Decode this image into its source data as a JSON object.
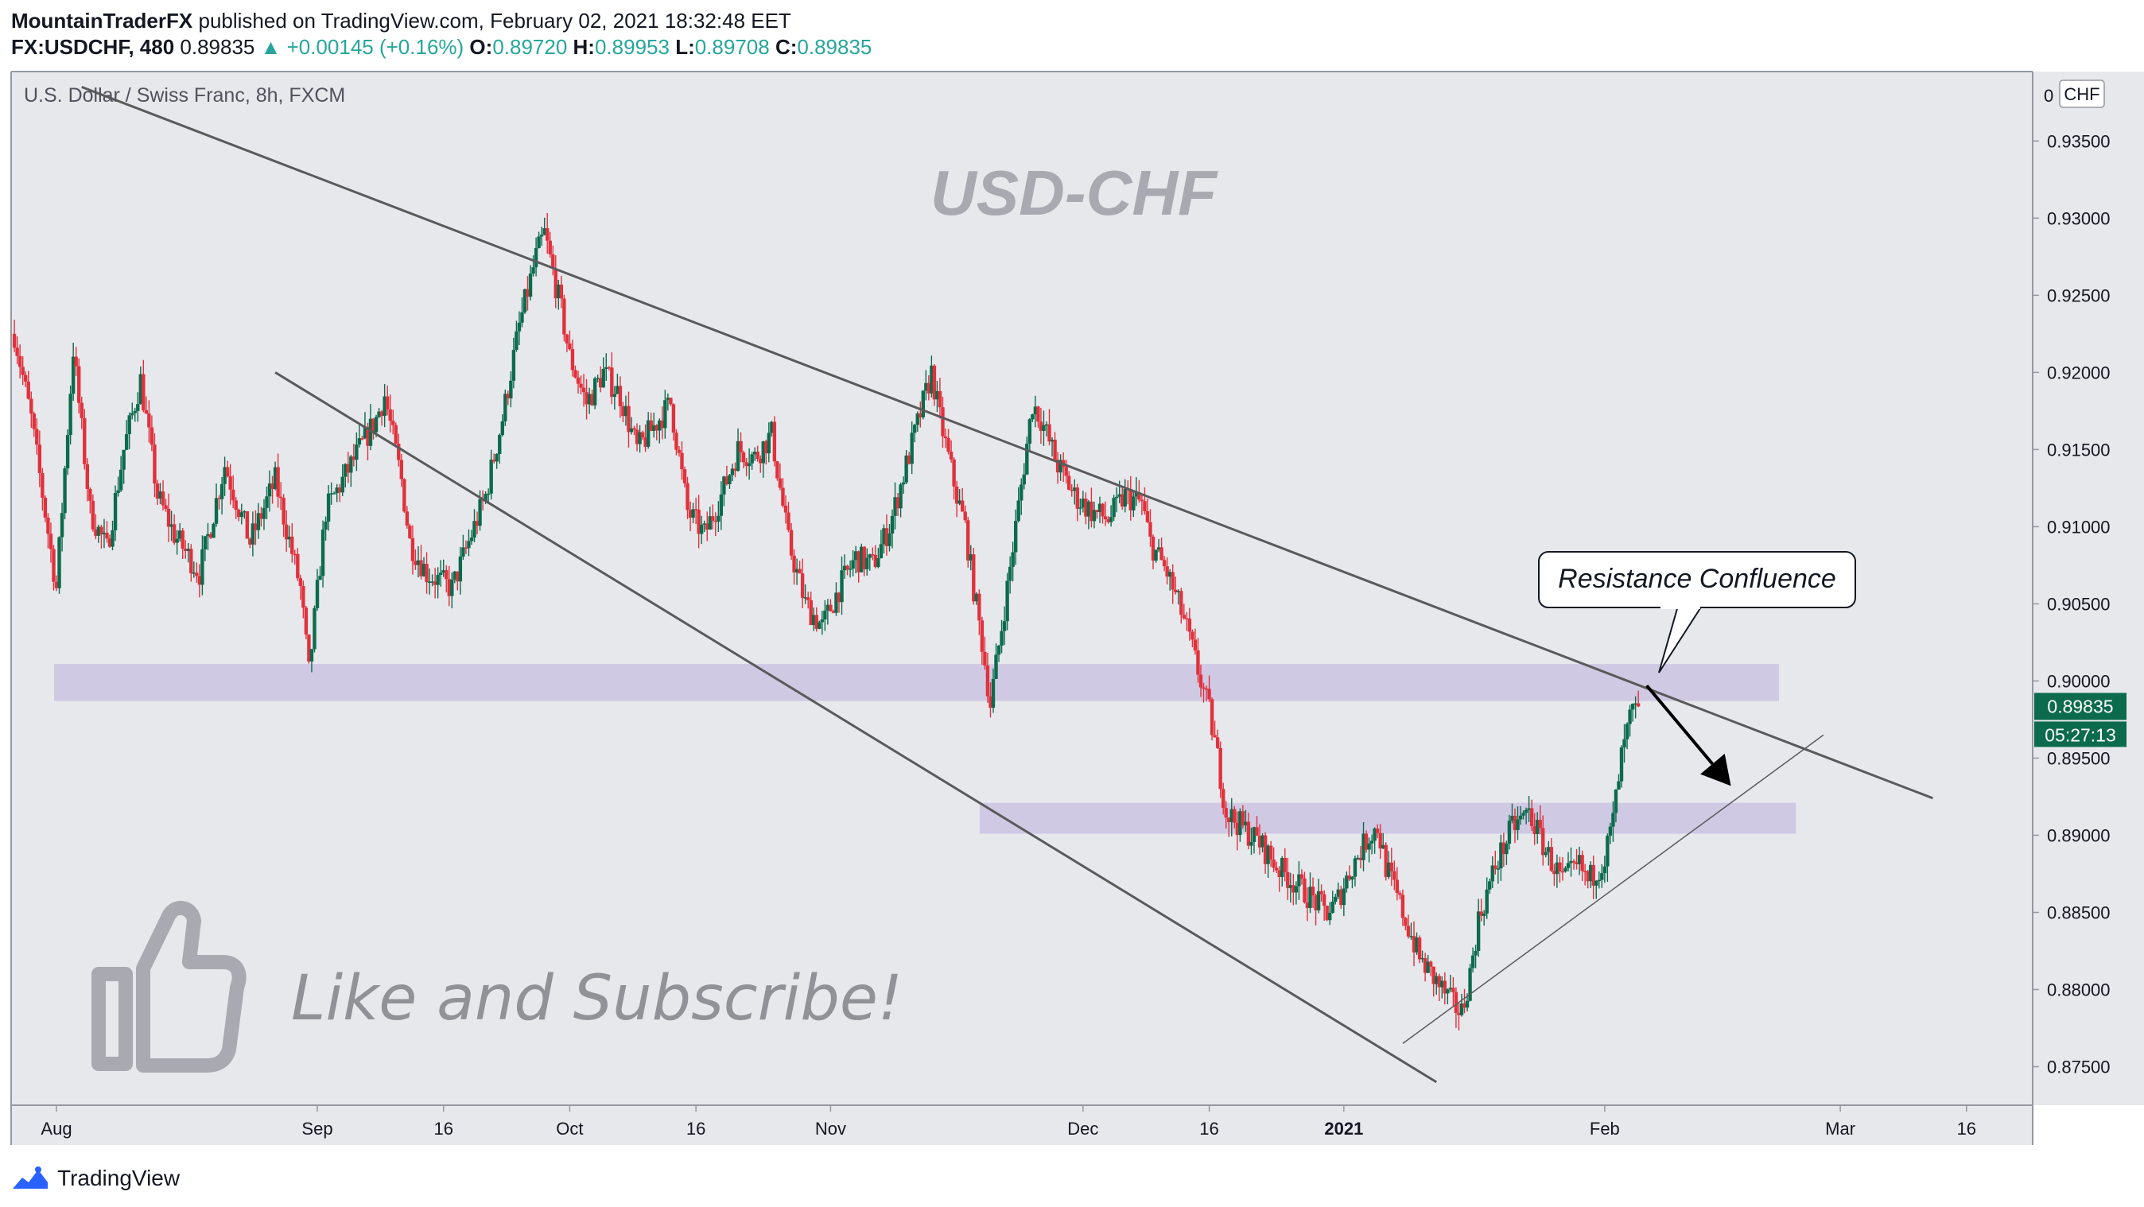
{
  "header": {
    "author": "MountainTraderFX",
    "published_text": "published on TradingView.com, February 02, 2021 18:32:48 EET"
  },
  "quote": {
    "symbol": "FX:USDCHF, 480",
    "price": "0.89835",
    "change": "▲ +0.00145 (+0.16%)",
    "o_label": "O:",
    "o": "0.89720",
    "h_label": "H:",
    "h": "0.89953",
    "l_label": "L:",
    "l": "0.89708",
    "c_label": "C:",
    "c": "0.89835"
  },
  "footer": {
    "brand": "TradingView"
  },
  "colors": {
    "bg": "#e7e8ec",
    "up": "#0c6b4c",
    "down": "#e0313c",
    "zone": "#cbc3e3",
    "line": "#5a5a5a",
    "price_badge": "#0c6b4c"
  },
  "chart_data": {
    "type": "candlestick",
    "title": "U.S. Dollar / Swiss Franc, 8h, FXCM",
    "watermark": "USD-CHF",
    "promo_text": "Like and Subscribe!",
    "currency_label": "CHF",
    "top_tick_partial": "0",
    "ylim": [
      0.8725,
      0.9395
    ],
    "y_ticks": [
      "0.93500",
      "0.93000",
      "0.92500",
      "0.92000",
      "0.91500",
      "0.91000",
      "0.90500",
      "0.90000",
      "0.89500",
      "0.89000",
      "0.88500",
      "0.88000",
      "0.87500"
    ],
    "x_ticks": [
      {
        "label": "Aug",
        "day": 0,
        "bold": false
      },
      {
        "label": "Sep",
        "day": 31,
        "bold": false
      },
      {
        "label": "16",
        "day": 46,
        "bold": false
      },
      {
        "label": "Oct",
        "day": 61,
        "bold": false
      },
      {
        "label": "16",
        "day": 76,
        "bold": false
      },
      {
        "label": "Nov",
        "day": 92,
        "bold": false
      },
      {
        "label": "Dec",
        "day": 122,
        "bold": false
      },
      {
        "label": "16",
        "day": 137,
        "bold": false
      },
      {
        "label": "2021",
        "day": 153,
        "bold": true
      },
      {
        "label": "Feb",
        "day": 184,
        "bold": false
      },
      {
        "label": "Mar",
        "day": 212,
        "bold": false
      },
      {
        "label": "16",
        "day": 227,
        "bold": false
      }
    ],
    "last_price": "0.89835",
    "last_price_value": 0.89835,
    "countdown": "05:27:13",
    "close_path": [
      {
        "day": -5,
        "v": 0.9225
      },
      {
        "day": -3,
        "v": 0.917
      },
      {
        "day": 0,
        "v": 0.906
      },
      {
        "day": 2,
        "v": 0.9215
      },
      {
        "day": 4,
        "v": 0.911
      },
      {
        "day": 6,
        "v": 0.9085
      },
      {
        "day": 8,
        "v": 0.915
      },
      {
        "day": 10,
        "v": 0.9195
      },
      {
        "day": 12,
        "v": 0.912
      },
      {
        "day": 14,
        "v": 0.9095
      },
      {
        "day": 17,
        "v": 0.907
      },
      {
        "day": 20,
        "v": 0.914
      },
      {
        "day": 23,
        "v": 0.909
      },
      {
        "day": 26,
        "v": 0.913
      },
      {
        "day": 29,
        "v": 0.906
      },
      {
        "day": 30,
        "v": 0.9005
      },
      {
        "day": 32,
        "v": 0.911
      },
      {
        "day": 35,
        "v": 0.914
      },
      {
        "day": 38,
        "v": 0.917
      },
      {
        "day": 39,
        "v": 0.9185
      },
      {
        "day": 41,
        "v": 0.913
      },
      {
        "day": 42,
        "v": 0.909
      },
      {
        "day": 44,
        "v": 0.907
      },
      {
        "day": 47,
        "v": 0.906
      },
      {
        "day": 49,
        "v": 0.909
      },
      {
        "day": 51,
        "v": 0.912
      },
      {
        "day": 53,
        "v": 0.917
      },
      {
        "day": 55,
        "v": 0.923
      },
      {
        "day": 57,
        "v": 0.9275
      },
      {
        "day": 58,
        "v": 0.929
      },
      {
        "day": 60,
        "v": 0.924
      },
      {
        "day": 61,
        "v": 0.921
      },
      {
        "day": 63,
        "v": 0.918
      },
      {
        "day": 65,
        "v": 0.92
      },
      {
        "day": 67,
        "v": 0.9185
      },
      {
        "day": 69,
        "v": 0.915
      },
      {
        "day": 71,
        "v": 0.9165
      },
      {
        "day": 73,
        "v": 0.918
      },
      {
        "day": 75,
        "v": 0.911
      },
      {
        "day": 77,
        "v": 0.9095
      },
      {
        "day": 79,
        "v": 0.912
      },
      {
        "day": 81,
        "v": 0.915
      },
      {
        "day": 83,
        "v": 0.9145
      },
      {
        "day": 85,
        "v": 0.916
      },
      {
        "day": 87,
        "v": 0.909
      },
      {
        "day": 89,
        "v": 0.905
      },
      {
        "day": 91,
        "v": 0.9035
      },
      {
        "day": 93,
        "v": 0.906
      },
      {
        "day": 95,
        "v": 0.908
      },
      {
        "day": 97,
        "v": 0.9075
      },
      {
        "day": 99,
        "v": 0.91
      },
      {
        "day": 101,
        "v": 0.914
      },
      {
        "day": 103,
        "v": 0.918
      },
      {
        "day": 104,
        "v": 0.92
      },
      {
        "day": 105,
        "v": 0.917
      },
      {
        "day": 107,
        "v": 0.912
      },
      {
        "day": 108,
        "v": 0.91
      },
      {
        "day": 109,
        "v": 0.906
      },
      {
        "day": 110,
        "v": 0.9025
      },
      {
        "day": 111,
        "v": 0.8985
      },
      {
        "day": 113,
        "v": 0.906
      },
      {
        "day": 115,
        "v": 0.914
      },
      {
        "day": 116,
        "v": 0.918
      },
      {
        "day": 117,
        "v": 0.917
      },
      {
        "day": 119,
        "v": 0.914
      },
      {
        "day": 121,
        "v": 0.912
      },
      {
        "day": 123,
        "v": 0.911
      },
      {
        "day": 125,
        "v": 0.9105
      },
      {
        "day": 127,
        "v": 0.912
      },
      {
        "day": 129,
        "v": 0.9115
      },
      {
        "day": 130,
        "v": 0.909
      },
      {
        "day": 132,
        "v": 0.907
      },
      {
        "day": 134,
        "v": 0.904
      },
      {
        "day": 135,
        "v": 0.902
      },
      {
        "day": 136,
        "v": 0.9
      },
      {
        "day": 137,
        "v": 0.898
      },
      {
        "day": 138,
        "v": 0.895
      },
      {
        "day": 139,
        "v": 0.8915
      },
      {
        "day": 141,
        "v": 0.8905
      },
      {
        "day": 143,
        "v": 0.8895
      },
      {
        "day": 145,
        "v": 0.888
      },
      {
        "day": 147,
        "v": 0.887
      },
      {
        "day": 149,
        "v": 0.886
      },
      {
        "day": 151,
        "v": 0.885
      },
      {
        "day": 152,
        "v": 0.8855
      },
      {
        "day": 154,
        "v": 0.888
      },
      {
        "day": 156,
        "v": 0.89
      },
      {
        "day": 157,
        "v": 0.8905
      },
      {
        "day": 158,
        "v": 0.888
      },
      {
        "day": 160,
        "v": 0.885
      },
      {
        "day": 162,
        "v": 0.882
      },
      {
        "day": 164,
        "v": 0.8805
      },
      {
        "day": 166,
        "v": 0.879
      },
      {
        "day": 167,
        "v": 0.8785
      },
      {
        "day": 168,
        "v": 0.881
      },
      {
        "day": 169,
        "v": 0.8845
      },
      {
        "day": 171,
        "v": 0.888
      },
      {
        "day": 173,
        "v": 0.8905
      },
      {
        "day": 175,
        "v": 0.8915
      },
      {
        "day": 177,
        "v": 0.889
      },
      {
        "day": 179,
        "v": 0.887
      },
      {
        "day": 181,
        "v": 0.888
      },
      {
        "day": 182,
        "v": 0.887
      },
      {
        "day": 184,
        "v": 0.8885
      },
      {
        "day": 185,
        "v": 0.891
      },
      {
        "day": 186,
        "v": 0.895
      },
      {
        "day": 187,
        "v": 0.8975
      },
      {
        "day": 188,
        "v": 0.89835
      }
    ],
    "annotations": {
      "callout_text": "Resistance Confluence",
      "trendlines": [
        {
          "name": "upper-trendline",
          "from": {
            "day": 3,
            "v": 0.9385
          },
          "to": {
            "day": 223,
            "v": 0.8924
          },
          "width": 3
        },
        {
          "name": "lower-channel-line",
          "from": {
            "day": 26,
            "v": 0.92
          },
          "to": {
            "day": 164,
            "v": 0.874
          },
          "width": 3
        },
        {
          "name": "rising-support-line",
          "from": {
            "day": 160,
            "v": 0.8765
          },
          "to": {
            "day": 210,
            "v": 0.8965
          },
          "width": 1.5
        }
      ],
      "zones": [
        {
          "name": "resistance-zone-upper",
          "day_start": 0,
          "day_end": 205,
          "v_top": 0.9011,
          "v_bottom": 0.8987
        },
        {
          "name": "support-zone-lower",
          "day_start": 110,
          "day_end": 207,
          "v_top": 0.8921,
          "v_bottom": 0.8901
        }
      ],
      "arrow": {
        "from": {
          "day": 189,
          "v": 0.8997
        },
        "to": {
          "day": 199,
          "v": 0.8932
        }
      },
      "callout_tail": {
        "day": 189,
        "v": 0.9002
      }
    }
  }
}
